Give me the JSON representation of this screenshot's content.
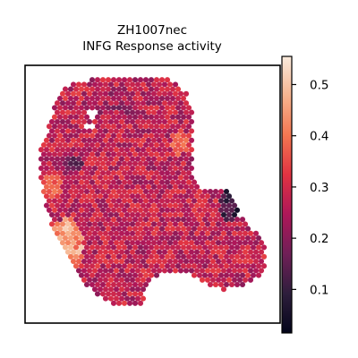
{
  "chart_data": {
    "type": "heatmap",
    "title_lines": [
      "ZH1007nec",
      "INFG Response activity"
    ],
    "xlabel": "",
    "ylabel": "",
    "colormap": "rocket",
    "colorbar": {
      "range": [
        0.015,
        0.555
      ],
      "ticks": [
        0.1,
        0.2,
        0.3,
        0.4,
        0.5
      ],
      "tick_labels": [
        "0.1",
        "0.2",
        "0.3",
        "0.4",
        "0.5"
      ]
    },
    "grid": false,
    "colormap_stops": [
      "#03051a",
      "#2e1e3c",
      "#701f57",
      "#ae1759",
      "#e13342",
      "#f37651",
      "#f6b48f",
      "#faebdd"
    ],
    "regions": [
      {
        "name": "tissue-body",
        "base_value": 0.27,
        "spread": 0.07
      },
      {
        "name": "high-activity-left-edge",
        "base_value": 0.44,
        "spread": 0.08
      },
      {
        "name": "low-activity-right-edge",
        "base_value": 0.1,
        "spread": 0.06
      }
    ]
  }
}
